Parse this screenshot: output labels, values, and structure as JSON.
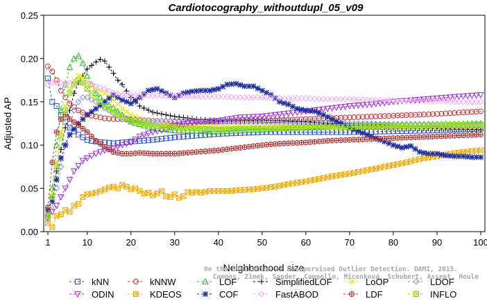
{
  "chart_data": {
    "type": "line",
    "title": "Cardiotocography_withoutdupl_05_v09",
    "xlabel": "Neighborhood size",
    "ylabel": "Adjusted AP",
    "xlim": [
      1,
      100
    ],
    "ylim": [
      0,
      0.25
    ],
    "xticks": [
      1,
      10,
      20,
      30,
      40,
      50,
      60,
      70,
      80,
      90,
      100
    ],
    "yticks": [
      "0.00",
      "0.05",
      "0.10",
      "0.15",
      "0.20",
      "0.25"
    ],
    "credit": [
      "Campos, Zimek, Sander, Campello, Micenková, Schubert, Assent, Houle",
      "On the Evaluation of Unsupervised Outlier Detection. DAMI, 2015."
    ],
    "legend_position": "bottom",
    "series": [
      {
        "name": "kNN",
        "color": "#2a4fcf",
        "marker": "square",
        "x": [
          1,
          2,
          3,
          4,
          5,
          6,
          8,
          10,
          12,
          14,
          16,
          18,
          20,
          25,
          30,
          35,
          40,
          50,
          60,
          70,
          80,
          90,
          100
        ],
        "y": [
          0.177,
          0.15,
          0.145,
          0.135,
          0.127,
          0.12,
          0.112,
          0.106,
          0.104,
          0.103,
          0.102,
          0.103,
          0.104,
          0.106,
          0.109,
          0.111,
          0.113,
          0.115,
          0.115,
          0.115,
          0.116,
          0.117,
          0.119
        ]
      },
      {
        "name": "kNNW",
        "color": "#cf2a2a",
        "marker": "circle",
        "x": [
          1,
          2,
          3,
          4,
          5,
          6,
          8,
          10,
          12,
          14,
          16,
          18,
          20,
          25,
          30,
          40,
          50,
          60,
          70,
          80,
          90,
          100
        ],
        "y": [
          0.191,
          0.185,
          0.175,
          0.163,
          0.155,
          0.148,
          0.14,
          0.135,
          0.133,
          0.131,
          0.13,
          0.13,
          0.129,
          0.128,
          0.127,
          0.127,
          0.128,
          0.13,
          0.132,
          0.134,
          0.136,
          0.139
        ]
      },
      {
        "name": "LOF",
        "color": "#2ab82a",
        "marker": "triangle",
        "x": [
          1,
          2,
          3,
          4,
          5,
          6,
          7,
          8,
          9,
          10,
          12,
          14,
          16,
          18,
          20,
          25,
          30,
          40,
          50,
          60,
          70,
          80,
          90,
          100
        ],
        "y": [
          0.02,
          0.05,
          0.1,
          0.14,
          0.17,
          0.19,
          0.2,
          0.203,
          0.195,
          0.18,
          0.16,
          0.15,
          0.143,
          0.135,
          0.127,
          0.12,
          0.117,
          0.116,
          0.118,
          0.121,
          0.123,
          0.124,
          0.124,
          0.125
        ]
      },
      {
        "name": "SimplifiedLOF",
        "color": "#000000",
        "marker": "plus",
        "x": [
          1,
          2,
          3,
          4,
          5,
          6,
          7,
          8,
          9,
          10,
          11,
          12,
          13,
          14,
          15,
          16,
          17,
          18,
          20,
          22,
          25,
          30,
          35,
          40,
          50,
          60,
          70,
          80,
          90,
          100
        ],
        "y": [
          0.02,
          0.04,
          0.07,
          0.095,
          0.12,
          0.14,
          0.16,
          0.172,
          0.18,
          0.188,
          0.192,
          0.196,
          0.199,
          0.197,
          0.19,
          0.183,
          0.175,
          0.17,
          0.155,
          0.145,
          0.138,
          0.133,
          0.13,
          0.128,
          0.129,
          0.127,
          0.123,
          0.12,
          0.119,
          0.118
        ]
      },
      {
        "name": "LoOP",
        "color": "#f5e21a",
        "marker": "x",
        "x": [
          1,
          2,
          3,
          4,
          5,
          6,
          7,
          8,
          9,
          10,
          12,
          14,
          16,
          18,
          20,
          25,
          30,
          40,
          50,
          60,
          70,
          80,
          90,
          100
        ],
        "y": [
          0.02,
          0.045,
          0.08,
          0.115,
          0.145,
          0.165,
          0.175,
          0.18,
          0.178,
          0.172,
          0.165,
          0.16,
          0.152,
          0.142,
          0.135,
          0.125,
          0.122,
          0.121,
          0.121,
          0.121,
          0.121,
          0.121,
          0.121,
          0.121
        ]
      },
      {
        "name": "LDOF",
        "color": "#9090d8",
        "marker": "diamond",
        "x": [
          1,
          2,
          3,
          4,
          5,
          6,
          7,
          8,
          9,
          10,
          12,
          14,
          16,
          18,
          20,
          25,
          30,
          35,
          40,
          50,
          60,
          70,
          80,
          90,
          100
        ],
        "y": [
          0.015,
          0.03,
          0.05,
          0.075,
          0.1,
          0.12,
          0.14,
          0.15,
          0.155,
          0.155,
          0.15,
          0.143,
          0.137,
          0.132,
          0.13,
          0.128,
          0.128,
          0.128,
          0.127,
          0.127,
          0.126,
          0.125,
          0.124,
          0.124,
          0.123
        ]
      },
      {
        "name": "ODIN",
        "color": "#9b2ee0",
        "marker": "triangle-down",
        "x": [
          1,
          3,
          5,
          7,
          9,
          10,
          12,
          14,
          16,
          18,
          20,
          22,
          25,
          28,
          30,
          33,
          36,
          40,
          45,
          50,
          55,
          60,
          65,
          70,
          75,
          80,
          85,
          90,
          95,
          100
        ],
        "y": [
          0.016,
          0.03,
          0.05,
          0.07,
          0.082,
          0.085,
          0.09,
          0.094,
          0.096,
          0.1,
          0.103,
          0.11,
          0.115,
          0.118,
          0.122,
          0.125,
          0.127,
          0.128,
          0.132,
          0.133,
          0.136,
          0.139,
          0.142,
          0.145,
          0.147,
          0.15,
          0.152,
          0.154,
          0.156,
          0.158
        ]
      },
      {
        "name": "KDEOS",
        "color": "#f0a800",
        "marker": "square-x",
        "x": [
          1,
          2,
          3,
          4,
          5,
          6,
          7,
          8,
          9,
          10,
          11,
          12,
          13,
          14,
          15,
          16,
          17,
          18,
          19,
          20,
          21,
          22,
          23,
          24,
          25,
          26,
          27,
          28,
          29,
          30,
          31,
          32,
          33,
          34,
          35,
          36,
          38,
          40,
          42,
          45,
          48,
          50,
          53,
          56,
          60,
          63,
          66,
          70,
          73,
          76,
          80,
          83,
          86,
          90,
          93,
          96,
          100
        ],
        "y": [
          0.01,
          0.005,
          0.018,
          0.02,
          0.025,
          0.023,
          0.03,
          0.032,
          0.04,
          0.043,
          0.044,
          0.045,
          0.047,
          0.049,
          0.051,
          0.052,
          0.05,
          0.054,
          0.052,
          0.049,
          0.05,
          0.047,
          0.044,
          0.045,
          0.042,
          0.044,
          0.047,
          0.041,
          0.04,
          0.043,
          0.039,
          0.041,
          0.046,
          0.045,
          0.046,
          0.045,
          0.047,
          0.047,
          0.047,
          0.048,
          0.049,
          0.05,
          0.052,
          0.055,
          0.058,
          0.061,
          0.064,
          0.067,
          0.07,
          0.073,
          0.077,
          0.08,
          0.084,
          0.087,
          0.09,
          0.092,
          0.094
        ]
      },
      {
        "name": "COF",
        "color": "#1f2e9e",
        "marker": "star",
        "x": [
          1,
          2,
          3,
          4,
          5,
          6,
          8,
          10,
          12,
          14,
          16,
          18,
          20,
          22,
          24,
          26,
          28,
          30,
          32,
          34,
          36,
          38,
          40,
          42,
          44,
          46,
          48,
          50,
          52,
          54,
          56,
          58,
          60,
          62,
          64,
          66,
          68,
          70,
          72,
          74,
          76,
          78,
          80,
          82,
          84,
          86,
          88,
          90,
          92,
          94,
          96,
          98,
          100
        ],
        "y": [
          0.025,
          0.035,
          0.06,
          0.085,
          0.1,
          0.112,
          0.125,
          0.135,
          0.142,
          0.15,
          0.158,
          0.152,
          0.148,
          0.155,
          0.163,
          0.165,
          0.16,
          0.155,
          0.16,
          0.162,
          0.163,
          0.163,
          0.165,
          0.17,
          0.171,
          0.168,
          0.168,
          0.163,
          0.158,
          0.15,
          0.147,
          0.142,
          0.14,
          0.139,
          0.135,
          0.13,
          0.125,
          0.12,
          0.116,
          0.112,
          0.108,
          0.104,
          0.1,
          0.097,
          0.099,
          0.092,
          0.09,
          0.09,
          0.088,
          0.087,
          0.087,
          0.086,
          0.086
        ]
      },
      {
        "name": "FastABOD",
        "color": "#f0a8f0",
        "marker": "diamond",
        "x": [
          1,
          2,
          3,
          4,
          5,
          6,
          8,
          10,
          12,
          14,
          16,
          18,
          20,
          25,
          30,
          35,
          40,
          45,
          50,
          55,
          60,
          65,
          70,
          75,
          80,
          85,
          90,
          95,
          100
        ],
        "y": [
          0.17,
          0.172,
          0.172,
          0.172,
          0.172,
          0.172,
          0.172,
          0.172,
          0.168,
          0.165,
          0.16,
          0.158,
          0.158,
          0.157,
          0.157,
          0.156,
          0.156,
          0.155,
          0.155,
          0.154,
          0.154,
          0.153,
          0.153,
          0.152,
          0.152,
          0.151,
          0.151,
          0.15,
          0.15
        ]
      },
      {
        "name": "LDF",
        "color": "#b02a2a",
        "marker": "circle-plus",
        "x": [
          1,
          2,
          3,
          4,
          5,
          6,
          8,
          10,
          12,
          14,
          16,
          18,
          20,
          22,
          25,
          28,
          30,
          35,
          40,
          45,
          50,
          55,
          60,
          65,
          70,
          75,
          80,
          85,
          90,
          95,
          100
        ],
        "y": [
          0.028,
          0.08,
          0.115,
          0.13,
          0.135,
          0.13,
          0.123,
          0.115,
          0.105,
          0.098,
          0.092,
          0.09,
          0.09,
          0.091,
          0.09,
          0.09,
          0.09,
          0.092,
          0.094,
          0.097,
          0.1,
          0.102,
          0.103,
          0.105,
          0.106,
          0.107,
          0.108,
          0.109,
          0.11,
          0.111,
          0.112
        ]
      },
      {
        "name": "INFLO",
        "color": "#8edc1a",
        "marker": "square-x",
        "x": [
          1,
          2,
          3,
          4,
          5,
          6,
          7,
          8,
          9,
          10,
          12,
          14,
          16,
          18,
          20,
          25,
          30,
          40,
          50,
          60,
          70,
          80,
          90,
          100
        ],
        "y": [
          0.018,
          0.04,
          0.075,
          0.11,
          0.14,
          0.16,
          0.17,
          0.175,
          0.172,
          0.165,
          0.155,
          0.145,
          0.138,
          0.133,
          0.128,
          0.122,
          0.12,
          0.118,
          0.119,
          0.12,
          0.121,
          0.122,
          0.123,
          0.124
        ]
      }
    ]
  }
}
